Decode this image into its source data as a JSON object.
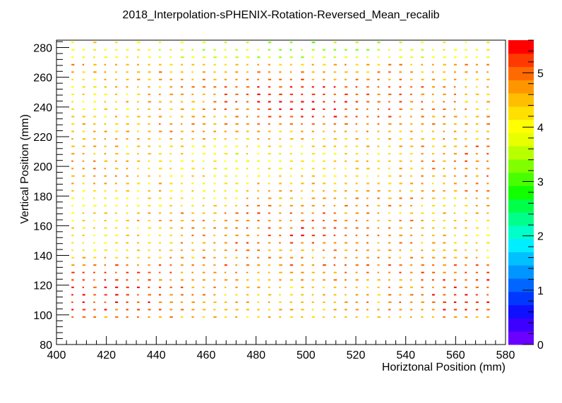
{
  "chart_data": {
    "type": "heatmap",
    "title": "2018_Interpolation-sPHENIX-Rotation-Reversed_Mean_recalib",
    "xlabel": "Horiztonal Position (mm)",
    "ylabel": "Vertical Position (mm)",
    "xlim": [
      400,
      580
    ],
    "ylim": [
      80,
      285
    ],
    "x_ticks": [
      "400",
      "420",
      "440",
      "460",
      "480",
      "500",
      "520",
      "540",
      "560",
      "580"
    ],
    "y_ticks": [
      "80",
      "100",
      "120",
      "140",
      "160",
      "180",
      "200",
      "220",
      "240",
      "260",
      "280"
    ],
    "z_range": [
      0,
      5.6
    ],
    "z_ticks": [
      "0",
      "1",
      "2",
      "3",
      "4",
      "5"
    ],
    "palette": [
      "#6a00ff",
      "#3d00ff",
      "#1010ff",
      "#0038ff",
      "#0066ff",
      "#0096ff",
      "#00c0ff",
      "#00eeff",
      "#00ffc8",
      "#00ff8a",
      "#00ff48",
      "#12ff00",
      "#48ff00",
      "#80ff00",
      "#b8ff00",
      "#e8ff00",
      "#ffff00",
      "#ffe000",
      "#ffbe00",
      "#ff9600",
      "#ff6a00",
      "#ff3a00",
      "#ff0000"
    ],
    "grid": false,
    "cells": {
      "x_start": 406,
      "x_step": 4.38,
      "x_count": 40,
      "y_start": 98,
      "y_step": 5,
      "y_count": 38,
      "cell_width_mm": 1.1,
      "cell_height_mm": 1.0,
      "description_rows": {
        "row_98": 4.6,
        "row_103": 5.0,
        "row_108": 5.3
      }
    }
  }
}
